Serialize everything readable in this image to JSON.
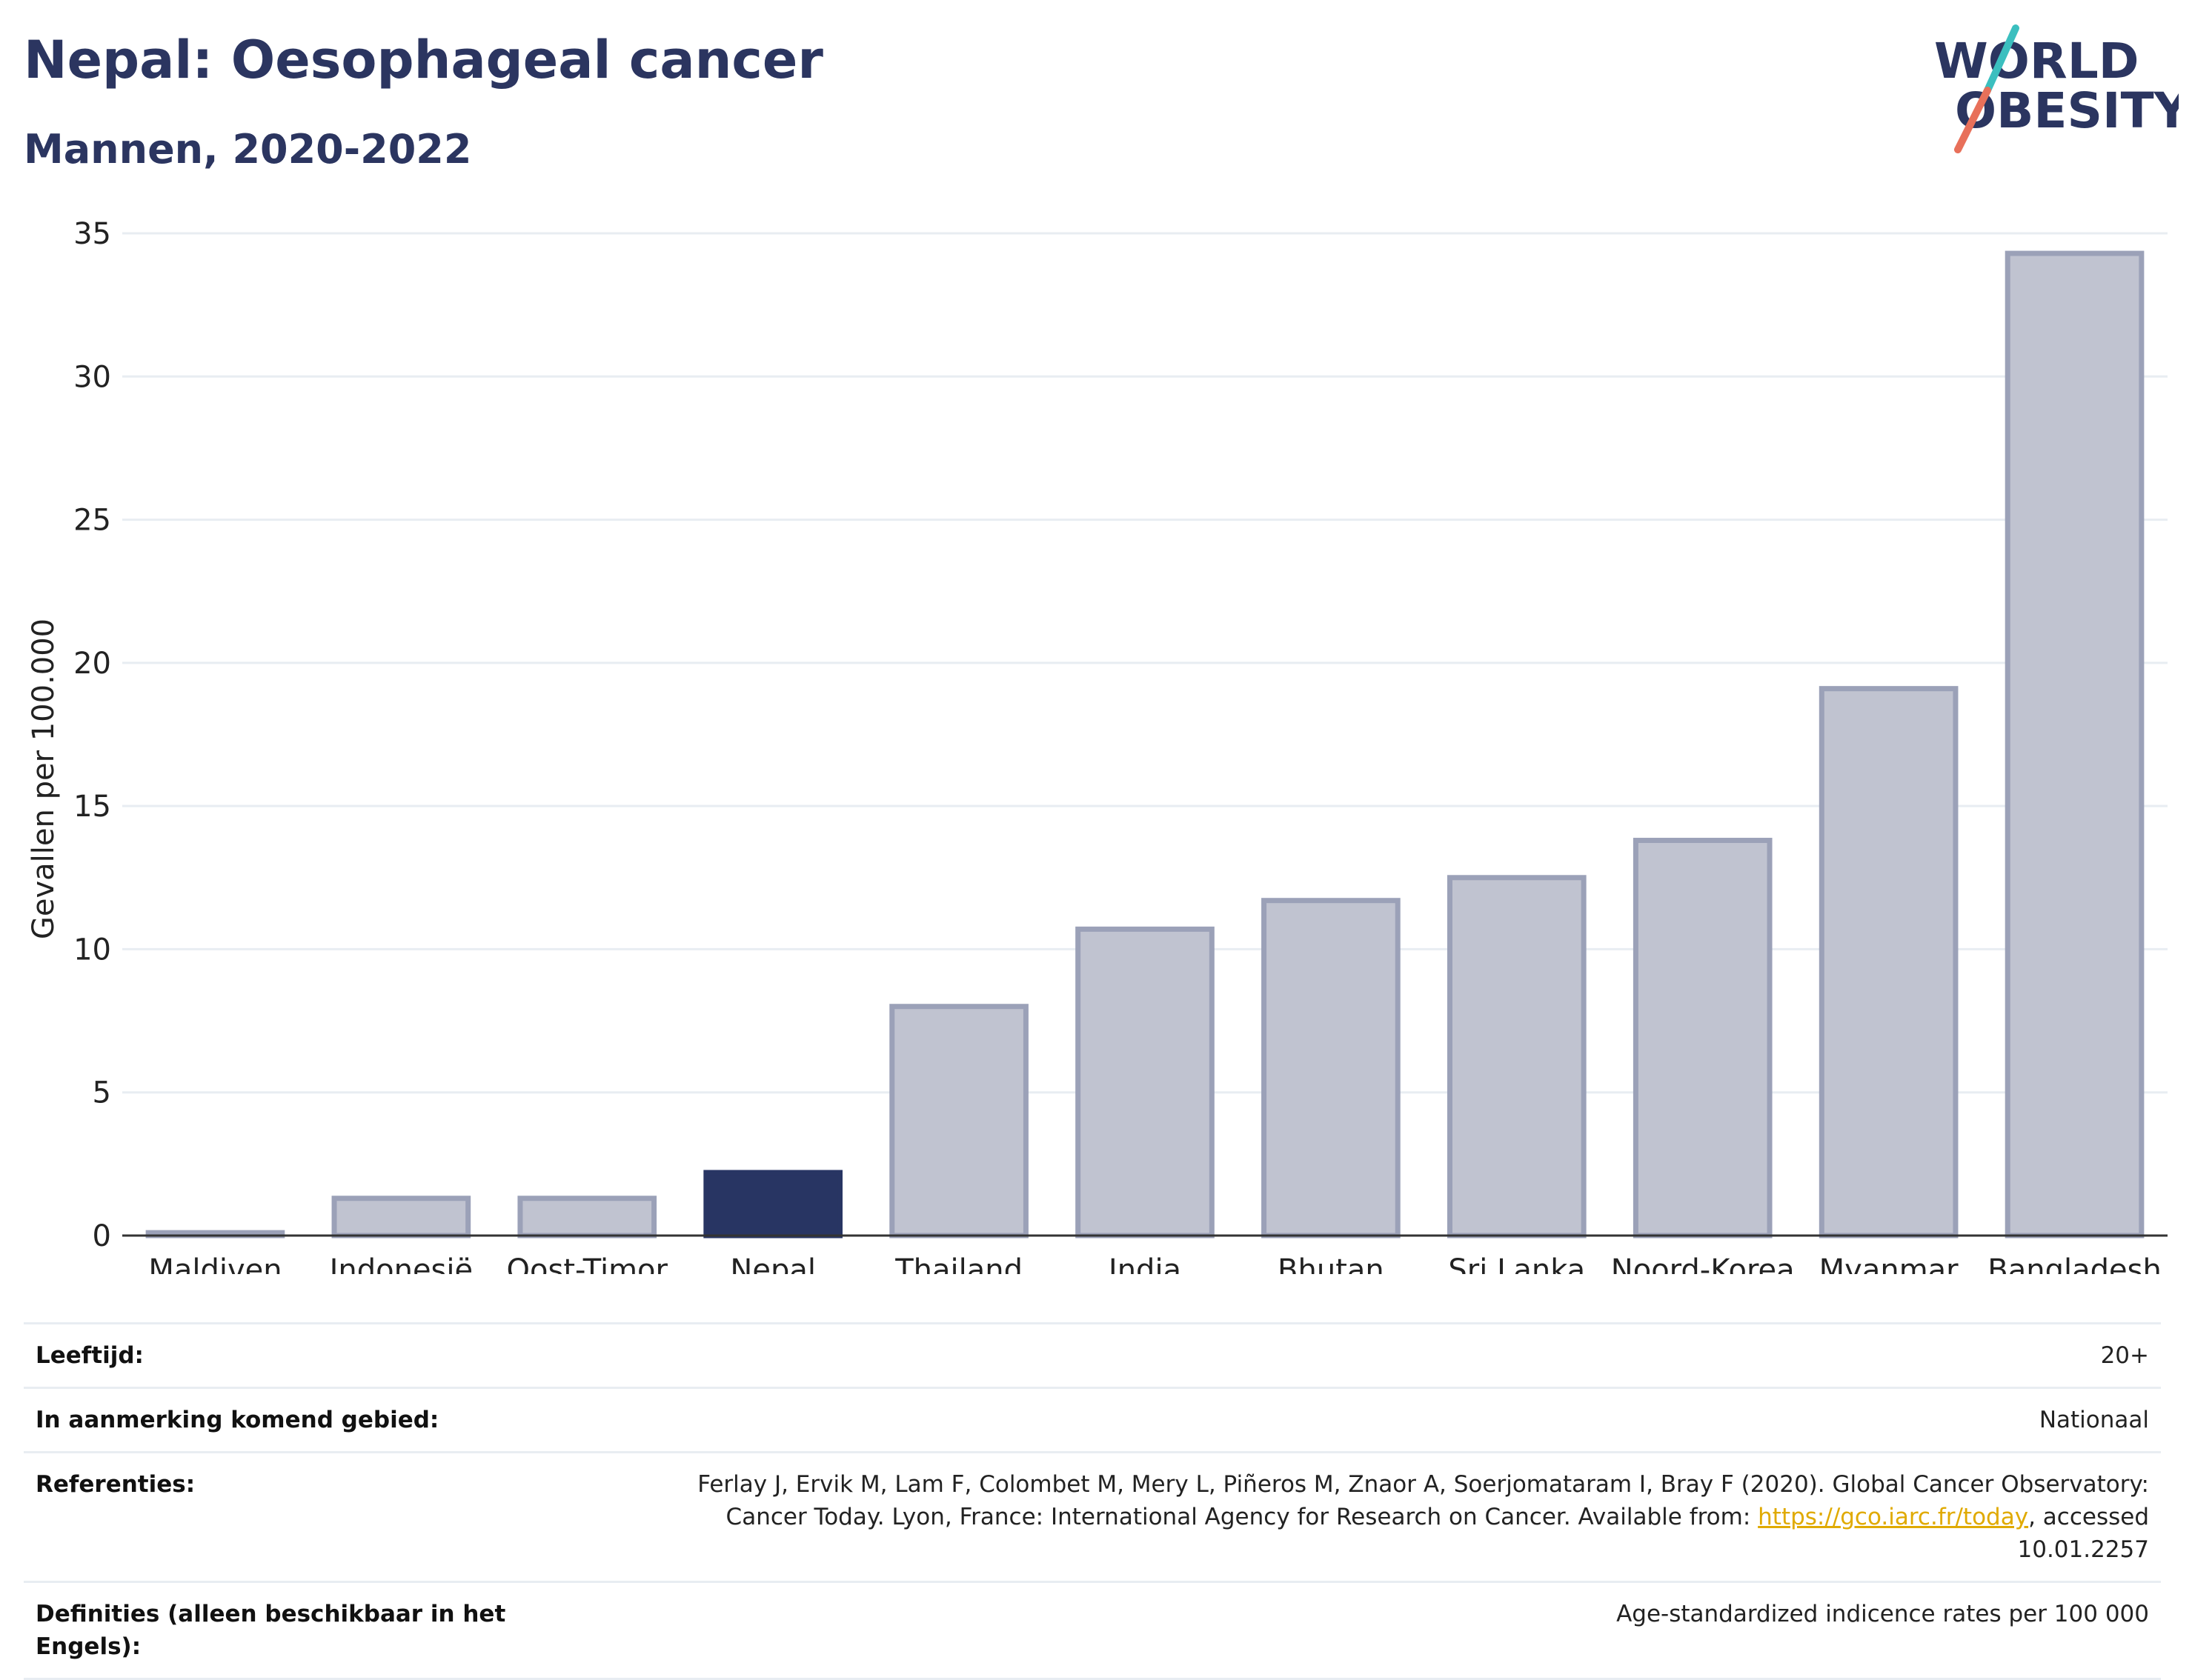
{
  "header": {
    "title": "Nepal: Oesophageal cancer",
    "subtitle": "Mannen, 2020-2022"
  },
  "logo": {
    "line1": "WORLD",
    "line2": "OBESITY",
    "colors": {
      "text": "#2b3560",
      "slash_top": "#3bbfbf",
      "slash_bottom": "#e8705a"
    }
  },
  "chart_data": {
    "type": "bar",
    "ylabel": "Gevallen per 100.000",
    "xlabel": "",
    "ylim": [
      0,
      35
    ],
    "yticks": [
      0,
      5,
      10,
      15,
      20,
      25,
      30,
      35
    ],
    "grid": true,
    "categories": [
      "Maldiven",
      "Indonesië",
      "Oost-Timor",
      "Nepal",
      "Thailand",
      "India",
      "Bhutan",
      "Sri Lanka",
      "Noord-Korea",
      "Myanmar",
      "Bangladesh"
    ],
    "values": [
      0.1,
      1.3,
      1.3,
      2.2,
      8.0,
      10.7,
      11.7,
      12.5,
      13.8,
      19.1,
      34.3
    ],
    "highlight": "Nepal",
    "colors": {
      "bar": "#c0c3d0",
      "bar_stroke": "#9ba1b8",
      "highlight": "#283563",
      "grid": "#e8edf2",
      "axis": "#333333"
    }
  },
  "meta": {
    "rows": [
      {
        "label": "Leeftijd:",
        "value": "20+"
      },
      {
        "label": "In aanmerking komend gebied:",
        "value": "Nationaal"
      },
      {
        "label": "Referenties:",
        "value_pre": "Ferlay J, Ervik M, Lam F, Colombet M, Mery L, Piñeros M, Znaor A, Soerjomataram I, Bray F (2020). Global Cancer Observatory: Cancer Today. Lyon, France: International Agency for Research on Cancer. Available from: ",
        "link": "https://gco.iarc.fr/today",
        "value_post": ", accessed 10.01.2257"
      },
      {
        "label": "Definities (alleen beschikbaar in het Engels):",
        "value": "Age-standardized indicence rates per 100 000"
      }
    ]
  }
}
